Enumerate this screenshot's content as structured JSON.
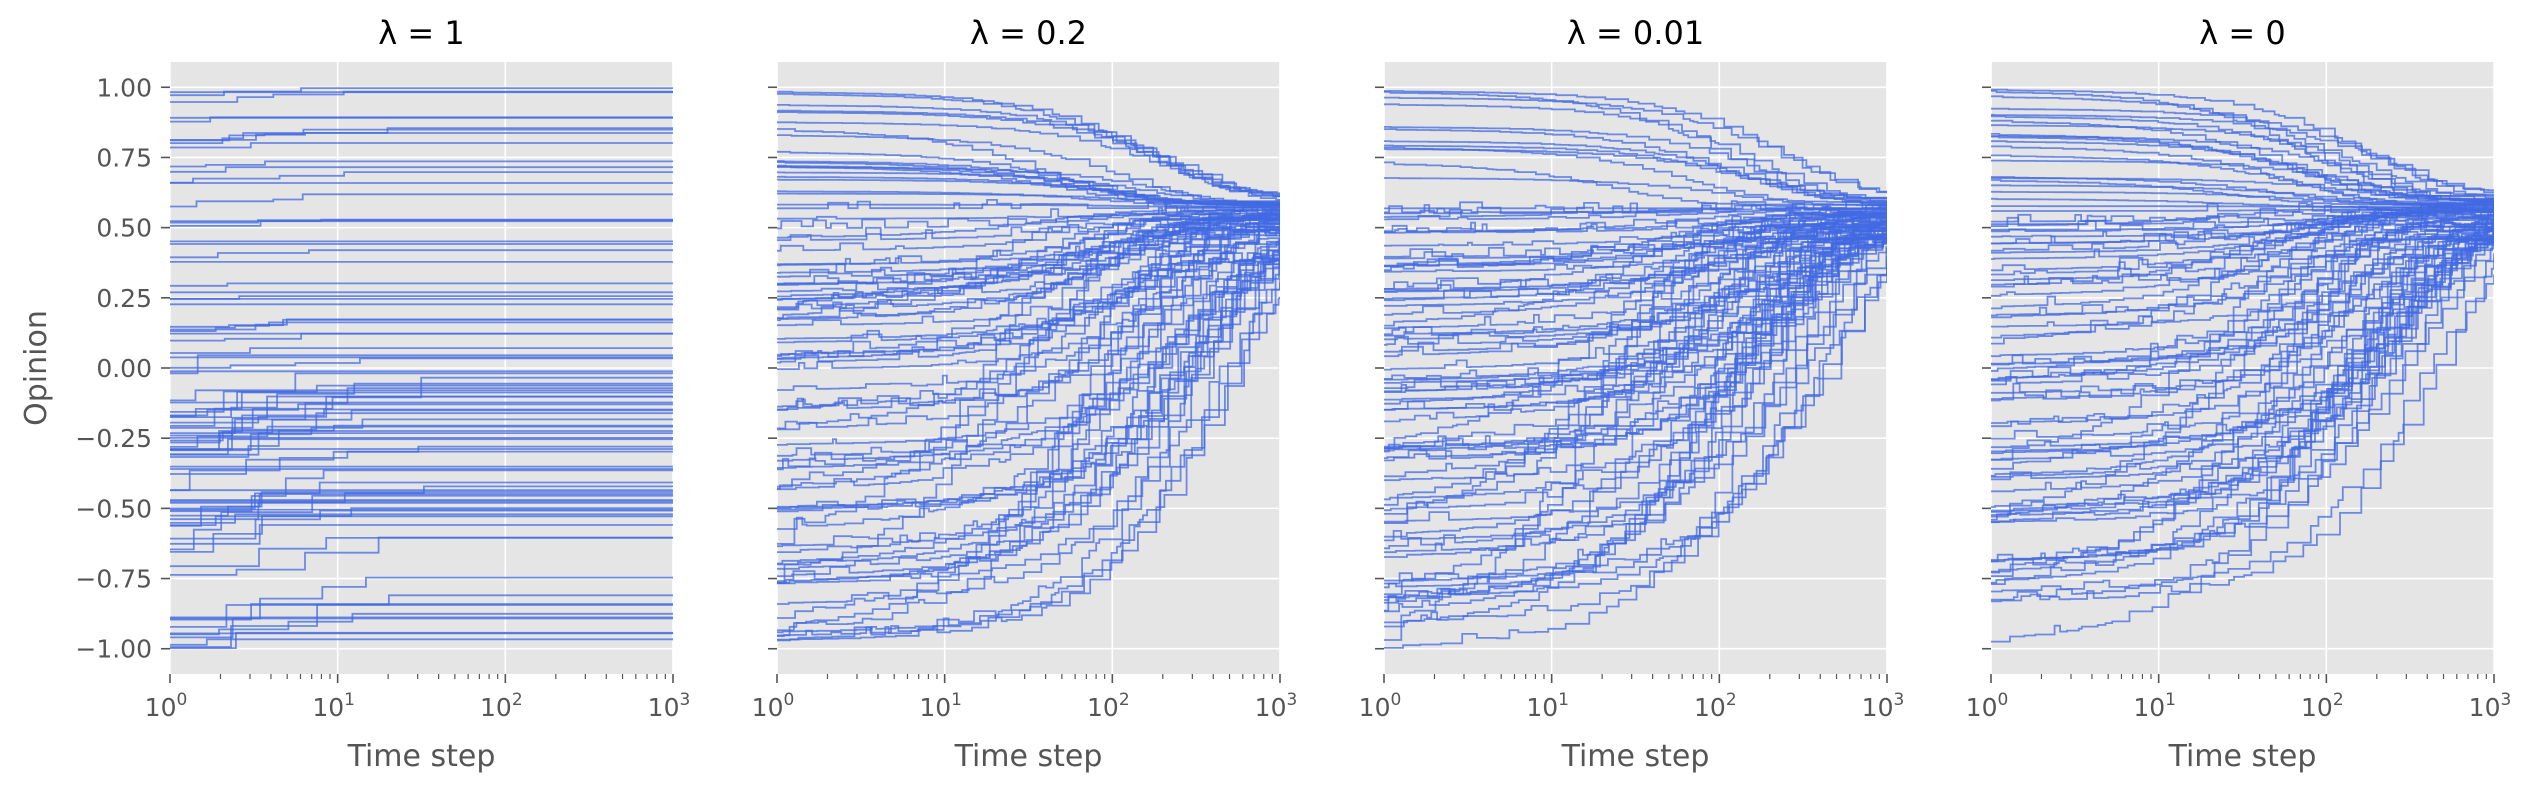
{
  "chart_data": [
    {
      "type": "line",
      "title": "λ = 1",
      "xlabel": "Time step",
      "ylabel": "Opinion",
      "x_scale": "log",
      "xlim": [
        1,
        1000
      ],
      "ylim": [
        -1.09,
        1.09
      ],
      "x_ticks": [
        {
          "base": "10",
          "exp": "0"
        },
        {
          "base": "10",
          "exp": "1"
        },
        {
          "base": "10",
          "exp": "2"
        },
        {
          "base": "10",
          "exp": "3"
        }
      ],
      "y_ticks": [
        "1.00",
        "0.75",
        "0.50",
        "0.25",
        "0.00",
        "−0.25",
        "−0.50",
        "−0.75",
        "−1.00"
      ],
      "y_tick_values": [
        1.0,
        0.75,
        0.5,
        0.25,
        0.0,
        -0.25,
        -0.5,
        -0.75,
        -1.0
      ],
      "grid": true,
      "line_color": "#4169e1",
      "n_trajectories": 90,
      "final_spread": [
        -0.9,
        1.0
      ],
      "convergence_target": null
    },
    {
      "type": "line",
      "title": "λ = 0.2",
      "xlabel": "Time step",
      "ylabel": "",
      "x_scale": "log",
      "xlim": [
        1,
        1000
      ],
      "ylim": [
        -1.09,
        1.09
      ],
      "x_ticks": [
        {
          "base": "10",
          "exp": "0"
        },
        {
          "base": "10",
          "exp": "1"
        },
        {
          "base": "10",
          "exp": "2"
        },
        {
          "base": "10",
          "exp": "3"
        }
      ],
      "y_ticks": [],
      "y_tick_values": [
        1.0,
        0.75,
        0.5,
        0.25,
        0.0,
        -0.25,
        -0.5,
        -0.75,
        -1.0
      ],
      "grid": true,
      "line_color": "#4169e1",
      "n_trajectories": 90,
      "final_spread": [
        0.38,
        0.66
      ],
      "convergence_target": 0.57
    },
    {
      "type": "line",
      "title": "λ = 0.01",
      "xlabel": "Time step",
      "ylabel": "",
      "x_scale": "log",
      "xlim": [
        1,
        1000
      ],
      "ylim": [
        -1.09,
        1.09
      ],
      "x_ticks": [
        {
          "base": "10",
          "exp": "0"
        },
        {
          "base": "10",
          "exp": "1"
        },
        {
          "base": "10",
          "exp": "2"
        },
        {
          "base": "10",
          "exp": "3"
        }
      ],
      "y_ticks": [],
      "y_tick_values": [
        1.0,
        0.75,
        0.5,
        0.25,
        0.0,
        -0.25,
        -0.5,
        -0.75,
        -1.0
      ],
      "grid": true,
      "line_color": "#4169e1",
      "n_trajectories": 90,
      "final_spread": [
        0.46,
        0.64
      ],
      "convergence_target": 0.57
    },
    {
      "type": "line",
      "title": "λ = 0",
      "xlabel": "Time step",
      "ylabel": "",
      "x_scale": "log",
      "xlim": [
        1,
        1000
      ],
      "ylim": [
        -1.09,
        1.09
      ],
      "x_ticks": [
        {
          "base": "10",
          "exp": "0"
        },
        {
          "base": "10",
          "exp": "1"
        },
        {
          "base": "10",
          "exp": "2"
        },
        {
          "base": "10",
          "exp": "3"
        }
      ],
      "y_ticks": [],
      "y_tick_values": [
        1.0,
        0.75,
        0.5,
        0.25,
        0.0,
        -0.25,
        -0.5,
        -0.75,
        -1.0
      ],
      "grid": true,
      "line_color": "#4169e1",
      "n_trajectories": 90,
      "final_spread": [
        0.46,
        0.64
      ],
      "convergence_target": 0.57
    }
  ]
}
